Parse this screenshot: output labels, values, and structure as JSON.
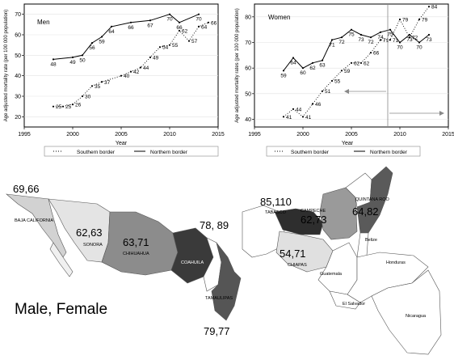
{
  "chart_data": [
    {
      "type": "line",
      "panel_label": "Men",
      "xlabel": "Year",
      "ylabel": "Age adjusted mortality rate (per 100 000 population)",
      "xlim": [
        1995,
        2015
      ],
      "ylim": [
        15,
        75
      ],
      "xticks": [
        1995,
        2000,
        2005,
        2010,
        2015
      ],
      "yticks": [
        20,
        30,
        40,
        50,
        60,
        70
      ],
      "grid": true,
      "legend_placement": "bottom",
      "series": [
        {
          "name": "Southern border",
          "style": "dotted",
          "points": [
            {
              "x": 1998,
              "y": 25,
              "label": "25"
            },
            {
              "x": 1999,
              "y": 25,
              "label": "25"
            },
            {
              "x": 2000,
              "y": 26,
              "label": "26"
            },
            {
              "x": 2001,
              "y": 30,
              "label": "30"
            },
            {
              "x": 2002,
              "y": 35,
              "label": "35"
            },
            {
              "x": 2003,
              "y": 37,
              "label": "37"
            },
            {
              "x": 2005,
              "y": 40,
              "label": "40"
            },
            {
              "x": 2006,
              "y": 42,
              "label": "42"
            },
            {
              "x": 2007,
              "y": 44,
              "label": "44"
            },
            {
              "x": 2008,
              "y": 49,
              "label": "49"
            },
            {
              "x": 2009,
              "y": 54,
              "label": "54"
            },
            {
              "x": 2010,
              "y": 55,
              "label": "55"
            },
            {
              "x": 2011,
              "y": 62,
              "label": "62"
            },
            {
              "x": 2012,
              "y": 57,
              "label": "57"
            },
            {
              "x": 2013,
              "y": 64,
              "label": "64"
            },
            {
              "x": 2014,
              "y": 66,
              "label": "66"
            }
          ]
        },
        {
          "name": "Northern border",
          "style": "solid",
          "points": [
            {
              "x": 1998,
              "y": 48,
              "label": "48"
            },
            {
              "x": 2000,
              "y": 49,
              "label": "49"
            },
            {
              "x": 2001,
              "y": 50,
              "label": "50"
            },
            {
              "x": 2002,
              "y": 56,
              "label": "56"
            },
            {
              "x": 2003,
              "y": 59,
              "label": "59"
            },
            {
              "x": 2004,
              "y": 64,
              "label": "64"
            },
            {
              "x": 2006,
              "y": 66,
              "label": "66"
            },
            {
              "x": 2008,
              "y": 67,
              "label": "67"
            },
            {
              "x": 2010,
              "y": 70,
              "label": "70"
            },
            {
              "x": 2011,
              "y": 66,
              "label": "66"
            },
            {
              "x": 2013,
              "y": 70,
              "label": "70"
            }
          ]
        }
      ]
    },
    {
      "type": "line",
      "panel_label": "Women",
      "xlabel": "Year",
      "ylabel": "Age adjusted mortality rates (per 100 000 population)",
      "xlim": [
        1995,
        2015
      ],
      "ylim": [
        37,
        85
      ],
      "xticks": [
        1995,
        2000,
        2005,
        2010,
        2015
      ],
      "yticks": [
        40,
        50,
        60,
        70,
        80
      ],
      "grid": true,
      "legend_placement": "bottom",
      "series": [
        {
          "name": "Southern border",
          "style": "dotted",
          "points": [
            {
              "x": 1998,
              "y": 41,
              "label": "41"
            },
            {
              "x": 1999,
              "y": 44,
              "label": "44"
            },
            {
              "x": 2000,
              "y": 41,
              "label": "41"
            },
            {
              "x": 2001,
              "y": 46,
              "label": "46"
            },
            {
              "x": 2002,
              "y": 51,
              "label": "51"
            },
            {
              "x": 2003,
              "y": 55,
              "label": "55"
            },
            {
              "x": 2004,
              "y": 59,
              "label": "59"
            },
            {
              "x": 2005,
              "y": 62,
              "label": "62"
            },
            {
              "x": 2006,
              "y": 62,
              "label": "62"
            },
            {
              "x": 2007,
              "y": 66,
              "label": "66"
            },
            {
              "x": 2008,
              "y": 71,
              "label": "71"
            },
            {
              "x": 2009,
              "y": 71,
              "label": "71"
            },
            {
              "x": 2010,
              "y": 79,
              "label": "79"
            },
            {
              "x": 2011,
              "y": 72,
              "label": "72"
            },
            {
              "x": 2012,
              "y": 79,
              "label": "79"
            },
            {
              "x": 2013,
              "y": 84,
              "label": "84"
            }
          ]
        },
        {
          "name": "Northern border",
          "style": "solid",
          "points": [
            {
              "x": 1998,
              "y": 59,
              "label": "59"
            },
            {
              "x": 1999,
              "y": 64,
              "label": "64"
            },
            {
              "x": 2000,
              "y": 60,
              "label": "60"
            },
            {
              "x": 2001,
              "y": 62,
              "label": "62"
            },
            {
              "x": 2002,
              "y": 63,
              "label": "63"
            },
            {
              "x": 2003,
              "y": 71,
              "label": "71"
            },
            {
              "x": 2004,
              "y": 72,
              "label": "72"
            },
            {
              "x": 2005,
              "y": 75,
              "label": "75"
            },
            {
              "x": 2006,
              "y": 73,
              "label": "73"
            },
            {
              "x": 2007,
              "y": 72,
              "label": "72"
            },
            {
              "x": 2008,
              "y": 74,
              "label": "74"
            },
            {
              "x": 2009,
              "y": 75,
              "label": "75"
            },
            {
              "x": 2010,
              "y": 70,
              "label": "70"
            },
            {
              "x": 2011,
              "y": 73,
              "label": "73"
            },
            {
              "x": 2012,
              "y": 70,
              "label": "70"
            },
            {
              "x": 2013,
              "y": 73,
              "label": "73"
            }
          ]
        }
      ]
    }
  ],
  "north_map": {
    "big_label": "Male, Female",
    "states": [
      {
        "name": "BAJA CALIFORNIA",
        "rates": "69,66",
        "shade": "#d2d2d2"
      },
      {
        "name": "SONORA",
        "rates": "62,63",
        "shade": "#e4e4e4"
      },
      {
        "name": "CHIHUAHUA",
        "rates": "63,71",
        "shade": "#8c8c8c"
      },
      {
        "name": "COAHUILA",
        "rates": "78, 89",
        "shade": "#3a3a3a"
      },
      {
        "name": "TAMAULIPAS",
        "rates": "79,77",
        "shade": "#555555"
      }
    ]
  },
  "south_map": {
    "states": [
      {
        "name": "TABASCO",
        "rates": "85,110",
        "shade": "#2e2e2e"
      },
      {
        "name": "CAMPECHE",
        "rates": "62,73",
        "shade": "#9a9a9a"
      },
      {
        "name": "QUINTANA ROO",
        "rates": "64,82",
        "shade": "#5a5a5a"
      },
      {
        "name": "CHIAPAS",
        "rates": "54,71",
        "shade": "#e0e0e0"
      }
    ],
    "countries": [
      "Belize",
      "Guatemala",
      "Honduras",
      "El Salvador",
      "Nicaragua"
    ]
  }
}
